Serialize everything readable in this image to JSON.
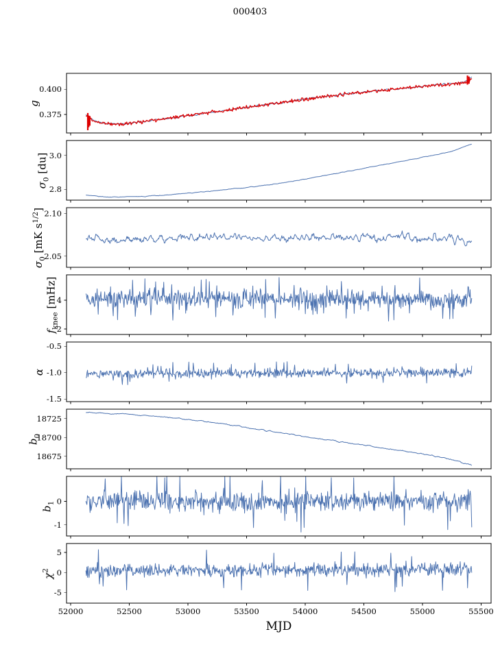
{
  "figure": {
    "bg_color": "#ffffff"
  },
  "chart_data": {
    "type": "line",
    "title": "000403",
    "xlabel": "MJD",
    "xlim": [
      51965,
      55585
    ],
    "x_ticks": [
      52000,
      52500,
      53000,
      53500,
      54000,
      54500,
      55000,
      55500
    ],
    "x_tick_labels": [
      "52000",
      "52500",
      "53000",
      "53500",
      "54000",
      "54500",
      "55000",
      "55500"
    ],
    "x_data_range": [
      52130,
      55420
    ],
    "grid": false,
    "legend": "none",
    "colors": {
      "fit_line": "#4c72b0",
      "data_line": "#dd0000",
      "axis": "#000000",
      "text": "#000000"
    },
    "panels": [
      {
        "name": "g",
        "label_html": "<i>g</i>",
        "ylim": [
          0.3568,
          0.4157
        ],
        "ytick_values": [
          0.375,
          0.4
        ],
        "ytick_labels": [
          "0.375",
          "0.400"
        ],
        "series": [
          {
            "name": "g-fit",
            "color_key": "fit_line",
            "n": 520,
            "seed": 11,
            "noise": 0.0007,
            "smooth": 1,
            "width": 1.0,
            "keypoints": [
              [
                52130,
                0.3745
              ],
              [
                52200,
                0.369
              ],
              [
                52300,
                0.366
              ],
              [
                52450,
                0.3658
              ],
              [
                52650,
                0.3685
              ],
              [
                52900,
                0.3725
              ],
              [
                53150,
                0.3765
              ],
              [
                53400,
                0.3805
              ],
              [
                53650,
                0.3845
              ],
              [
                53900,
                0.3885
              ],
              [
                54150,
                0.3925
              ],
              [
                54400,
                0.396
              ],
              [
                54650,
                0.399
              ],
              [
                54900,
                0.4015
              ],
              [
                55100,
                0.404
              ],
              [
                55250,
                0.4055
              ],
              [
                55360,
                0.407
              ],
              [
                55420,
                0.4125
              ]
            ]
          },
          {
            "name": "g-data",
            "color_key": "data_line",
            "n": 520,
            "seed": 12,
            "noise": 0.0012,
            "smooth": 0,
            "width": 1.3,
            "keypoints": [
              [
                52130,
                0.3745
              ],
              [
                52200,
                0.369
              ],
              [
                52300,
                0.366
              ],
              [
                52450,
                0.3658
              ],
              [
                52650,
                0.3685
              ],
              [
                52900,
                0.3725
              ],
              [
                53150,
                0.3765
              ],
              [
                53400,
                0.3805
              ],
              [
                53650,
                0.3845
              ],
              [
                53900,
                0.3885
              ],
              [
                54150,
                0.3925
              ],
              [
                54400,
                0.396
              ],
              [
                54650,
                0.399
              ],
              [
                54900,
                0.4015
              ],
              [
                55100,
                0.404
              ],
              [
                55250,
                0.4055
              ],
              [
                55360,
                0.4065
              ],
              [
                55420,
                0.41
              ]
            ],
            "spikes": [
              [
                52146,
                0.3595,
                0.3765
              ],
              [
                52154,
                0.3625,
                0.374
              ],
              [
                52163,
                0.364,
                0.3735
              ],
              [
                55384,
                0.4045,
                0.4135
              ],
              [
                55396,
                0.4055,
                0.4125
              ]
            ]
          }
        ]
      },
      {
        "name": "sigma0-du",
        "label_html": "<i>&#963;</i><sub>0</sub> [du]",
        "ylim": [
          2.736,
          3.088
        ],
        "ytick_values": [
          2.8,
          3.0
        ],
        "ytick_labels": [
          "2.8",
          "3.0"
        ],
        "series": [
          {
            "name": "sigma0-du",
            "color_key": "fit_line",
            "n": 520,
            "seed": 21,
            "noise": 0.002,
            "smooth": 2,
            "width": 1.0,
            "keypoints": [
              [
                52130,
                2.766
              ],
              [
                52320,
                2.754
              ],
              [
                52550,
                2.756
              ],
              [
                52800,
                2.766
              ],
              [
                53050,
                2.78
              ],
              [
                53300,
                2.7965
              ],
              [
                53550,
                2.8145
              ],
              [
                53800,
                2.836
              ],
              [
                54050,
                2.866
              ],
              [
                54300,
                2.898
              ],
              [
                54550,
                2.93
              ],
              [
                54800,
                2.962
              ],
              [
                55050,
                2.995
              ],
              [
                55250,
                3.024
              ],
              [
                55420,
                3.068
              ]
            ]
          }
        ]
      },
      {
        "name": "sigma0-mk",
        "label_html": "<i>&#963;</i><sub>0</sub> [mK s<sup>1/2</sup>]",
        "ylim": [
          2.037,
          2.107
        ],
        "ytick_values": [
          2.05,
          2.1
        ],
        "ytick_labels": [
          "2.05",
          "2.10"
        ],
        "series": [
          {
            "name": "sigma0-mk",
            "color_key": "fit_line",
            "n": 700,
            "seed": 31,
            "noise": 0.0052,
            "smooth": 2,
            "width": 1.0,
            "keypoints": [
              [
                52130,
                2.0685
              ],
              [
                52500,
                2.071
              ],
              [
                54000,
                2.0715
              ],
              [
                55420,
                2.071
              ]
            ]
          }
        ]
      },
      {
        "name": "fknee",
        "label_html": "<i>f</i><sub>knee</sub> [mHz]",
        "ylim": [
          1.62,
          5.75
        ],
        "ytick_values": [
          2,
          4
        ],
        "ytick_labels": [
          "2",
          "4"
        ],
        "series": [
          {
            "name": "fknee",
            "color_key": "fit_line",
            "n": 720,
            "seed": 41,
            "noise": 0.5,
            "smooth": 0,
            "spike_prob": 0.04,
            "spike_mult": 1.6,
            "width": 1.0,
            "keypoints": [
              [
                52130,
                4.1
              ],
              [
                53800,
                4.08
              ],
              [
                55420,
                4.02
              ]
            ]
          }
        ]
      },
      {
        "name": "alpha",
        "label_html": "<i>&#945;</i>",
        "ylim": [
          -1.55,
          -0.42
        ],
        "ytick_values": [
          -1.5,
          -1.0,
          -0.5
        ],
        "ytick_labels": [
          "-1.5",
          "-1.0",
          "-0.5"
        ],
        "series": [
          {
            "name": "alpha",
            "color_key": "fit_line",
            "n": 720,
            "seed": 51,
            "noise": 0.062,
            "smooth": 0,
            "spike_prob": 0.03,
            "spike_mult": 1.8,
            "width": 1.0,
            "keypoints": [
              [
                52130,
                -1.02
              ],
              [
                54000,
                -1.01
              ],
              [
                55420,
                -1.0
              ]
            ]
          }
        ]
      },
      {
        "name": "b0",
        "label_html": "<i>b</i><sub>0</sub>",
        "ylim": [
          18658.4,
          18737.6
        ],
        "ytick_values": [
          18675,
          18700,
          18725
        ],
        "ytick_labels": [
          "18675",
          "18700",
          "18725"
        ],
        "series": [
          {
            "name": "b0",
            "color_key": "fit_line",
            "n": 520,
            "seed": 61,
            "noise": 0.8,
            "smooth": 2,
            "width": 1.0,
            "keypoints": [
              [
                52130,
                18733
              ],
              [
                52400,
                18731.5
              ],
              [
                52700,
                18728.5
              ],
              [
                53000,
                18724
              ],
              [
                53300,
                18718
              ],
              [
                53600,
                18711
              ],
              [
                53900,
                18703.5
              ],
              [
                54200,
                18696.5
              ],
              [
                54500,
                18689.5
              ],
              [
                54800,
                18683
              ],
              [
                55050,
                18677
              ],
              [
                55250,
                18670.5
              ],
              [
                55420,
                18663.5
              ]
            ]
          }
        ]
      },
      {
        "name": "b1",
        "label_html": "<i>b</i><sub>1</sub>",
        "ylim": [
          -1.47,
          1.06
        ],
        "ytick_values": [
          -1,
          0
        ],
        "ytick_labels": [
          "-1",
          "0"
        ],
        "series": [
          {
            "name": "b1",
            "color_key": "fit_line",
            "n": 740,
            "seed": 71,
            "noise": 0.3,
            "smooth": 0,
            "spike_prob": 0.025,
            "spike_mult": 2.4,
            "width": 1.0,
            "keypoints": [
              [
                52130,
                0.0
              ],
              [
                55420,
                0.02
              ]
            ]
          }
        ]
      },
      {
        "name": "chi2",
        "label_html": "<i>&#967;</i><sup>2</sup>",
        "ylim": [
          -7.6,
          7.2
        ],
        "ytick_values": [
          -5,
          0,
          5
        ],
        "ytick_labels": [
          "-5",
          "0",
          "5"
        ],
        "series": [
          {
            "name": "chi2",
            "color_key": "fit_line",
            "n": 740,
            "seed": 81,
            "noise": 1.15,
            "smooth": 0,
            "spike_prob": 0.02,
            "spike_mult": 2.4,
            "width": 1.0,
            "keypoints": [
              [
                52130,
                0.45
              ],
              [
                55420,
                0.7
              ]
            ]
          }
        ]
      }
    ]
  }
}
